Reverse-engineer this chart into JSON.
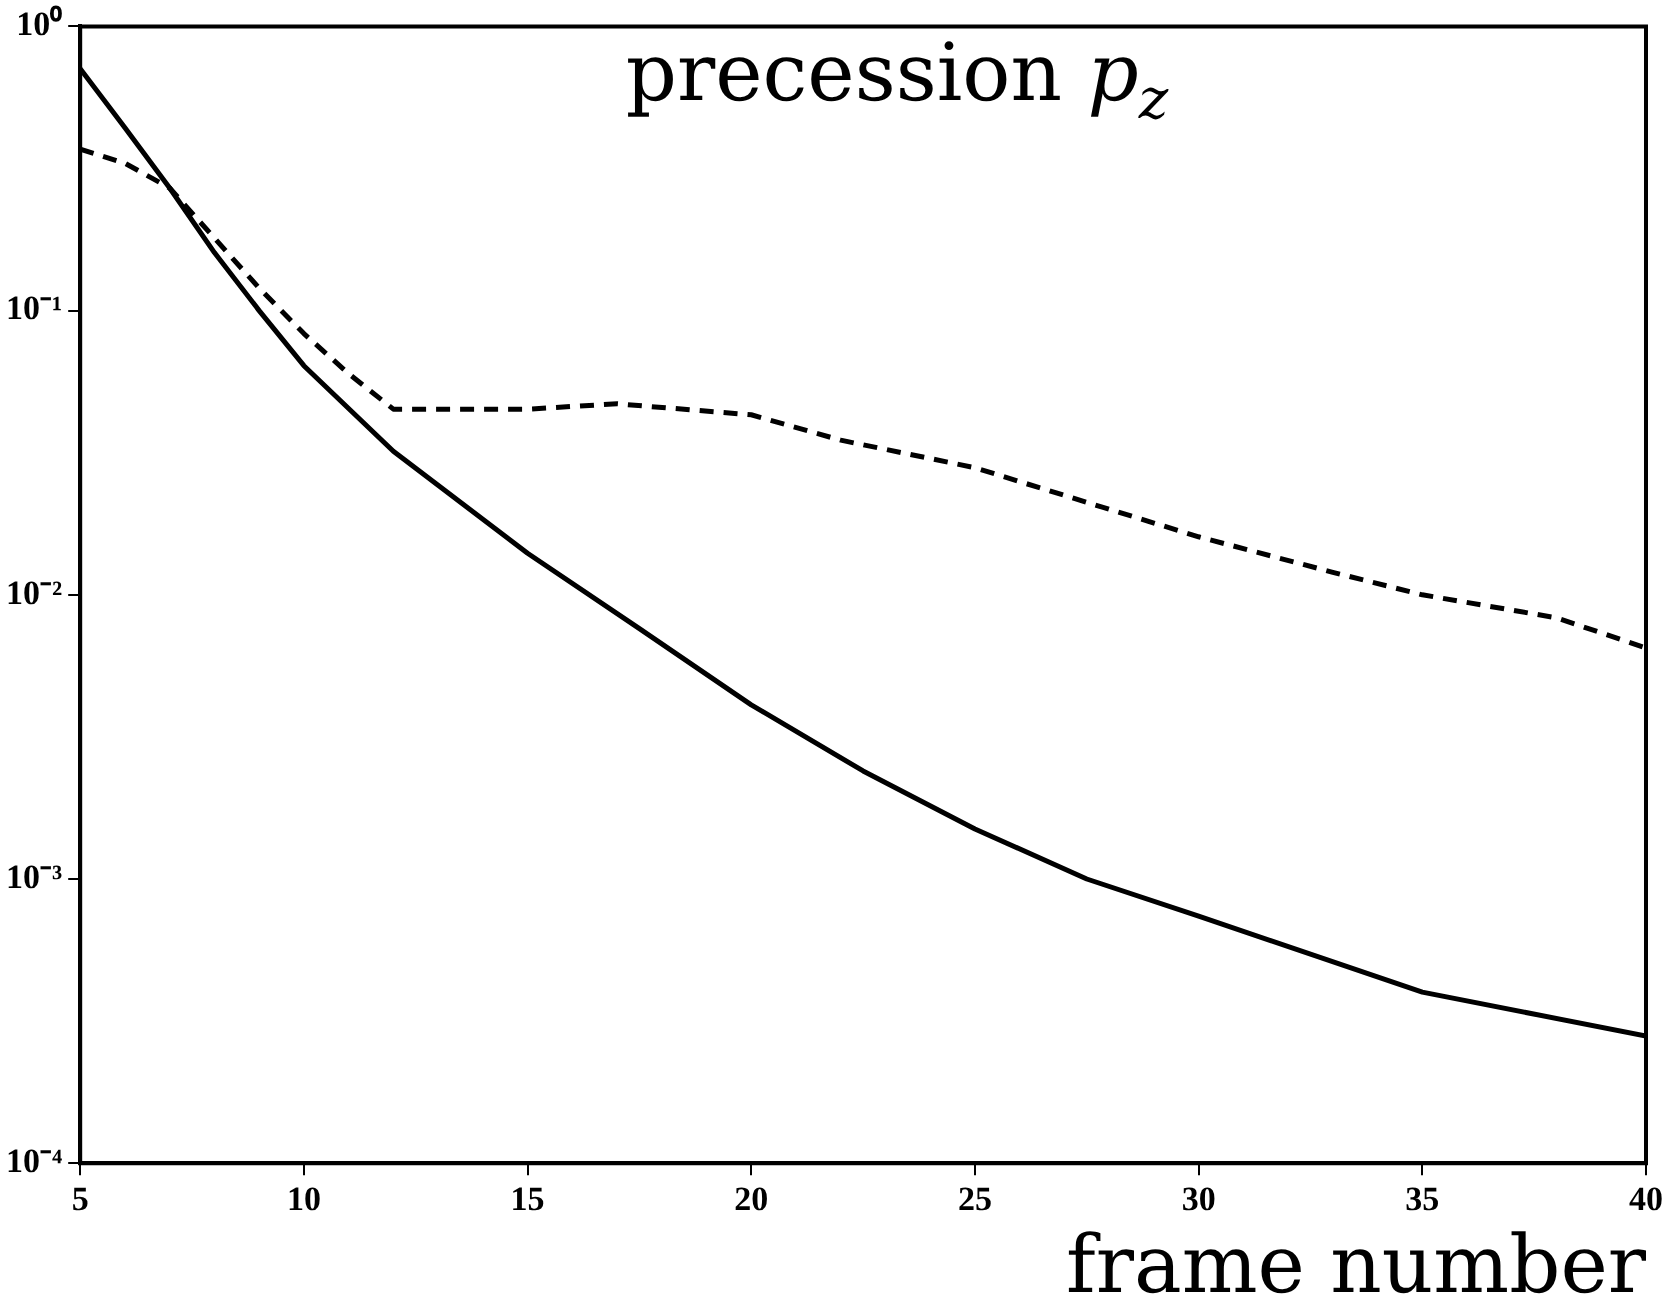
{
  "chart_data": {
    "type": "line",
    "title": "precession p$_{z}$",
    "xlabel": "frame number",
    "log": "y",
    "xlim": [
      5,
      40
    ],
    "xticks": [
      5,
      10,
      15,
      20,
      25,
      30,
      35,
      40
    ],
    "ylim": [
      0.0001,
      1
    ],
    "yticks": [
      {
        "value": 1,
        "label": "10⁰"
      },
      {
        "value": 0.1,
        "label": "10⁻¹"
      },
      {
        "value": 0.01,
        "label": "10⁻²"
      },
      {
        "value": 0.001,
        "label": "10⁻³"
      },
      {
        "value": 0.0001,
        "label": "10⁻⁴"
      }
    ],
    "grid": false,
    "legend": false,
    "marker": "none",
    "series": [
      {
        "color": "#000000",
        "line_style": "solid",
        "x": [
          5,
          6,
          7,
          8,
          9,
          10,
          12,
          15,
          17.5,
          20,
          22.5,
          25,
          27.5,
          30,
          35,
          40
        ],
        "values": [
          0.71,
          0.44,
          0.27,
          0.16,
          0.1,
          0.064,
          0.032,
          0.014,
          0.0076,
          0.0041,
          0.0024,
          0.0015,
          0.001,
          0.00074,
          0.0004,
          0.00028
        ]
      },
      {
        "color": "#000000",
        "line_style": "dashed",
        "x": [
          5,
          6,
          7,
          8,
          9,
          10,
          11,
          12,
          13,
          15,
          17,
          20,
          22,
          25,
          28,
          30,
          33,
          35,
          38,
          40
        ],
        "values": [
          0.37,
          0.33,
          0.27,
          0.18,
          0.12,
          0.083,
          0.06,
          0.045,
          0.045,
          0.045,
          0.047,
          0.043,
          0.035,
          0.028,
          0.02,
          0.016,
          0.012,
          0.01,
          0.0083,
          0.0065
        ]
      }
    ]
  }
}
